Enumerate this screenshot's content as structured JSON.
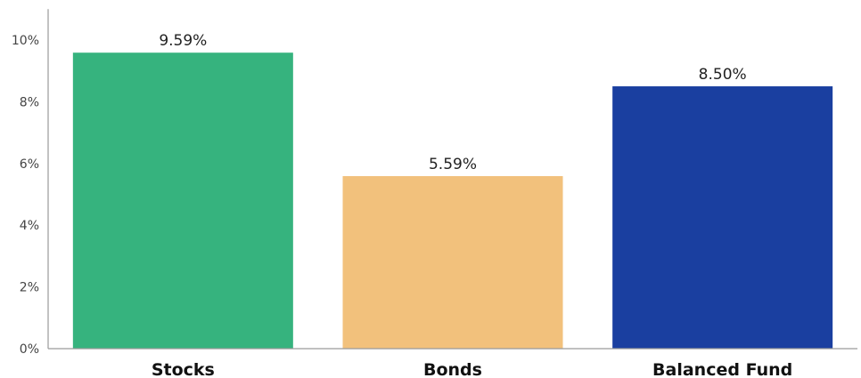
{
  "chart_data": {
    "type": "bar",
    "categories": [
      "Stocks",
      "Bonds",
      "Balanced Fund"
    ],
    "values": [
      9.59,
      5.59,
      8.5
    ],
    "value_labels": [
      "9.59%",
      "5.59%",
      "8.50%"
    ],
    "colors": [
      "#36b37e",
      "#f2c17c",
      "#1a3fa0"
    ],
    "title": "",
    "xlabel": "",
    "ylabel": "",
    "ylim": [
      0,
      11
    ],
    "y_ticks": [
      0,
      2,
      4,
      6,
      8,
      10
    ],
    "y_tick_labels": [
      "0%",
      "2%",
      "4%",
      "6%",
      "8%",
      "10%"
    ],
    "grid": false,
    "legend": "none"
  }
}
